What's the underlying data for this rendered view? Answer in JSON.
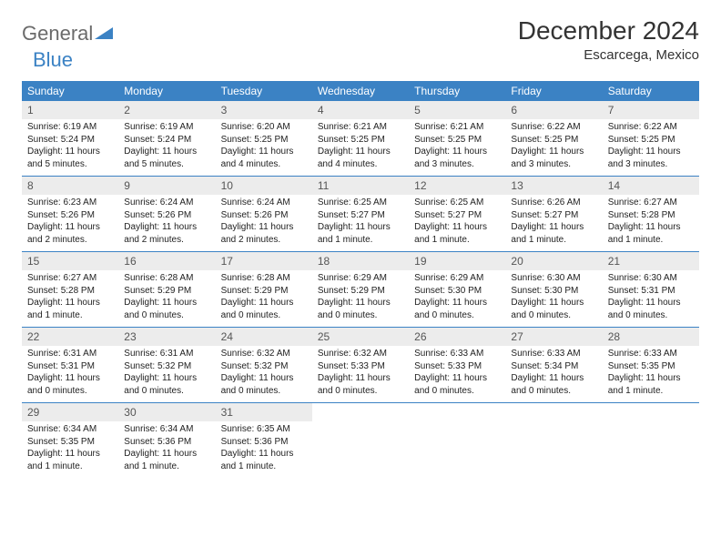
{
  "brand": {
    "name_gray": "General",
    "name_blue": "Blue"
  },
  "title": "December 2024",
  "location": "Escarcega, Mexico",
  "colors": {
    "header_bg": "#3b82c4",
    "header_fg": "#ffffff",
    "daynum_bg": "#ececec",
    "daynum_fg": "#555555",
    "rule": "#3b82c4",
    "logo_gray": "#6b6b6b",
    "logo_blue": "#3b82c4"
  },
  "day_names": [
    "Sunday",
    "Monday",
    "Tuesday",
    "Wednesday",
    "Thursday",
    "Friday",
    "Saturday"
  ],
  "labels": {
    "sunrise": "Sunrise:",
    "sunset": "Sunset:",
    "daylight": "Daylight:"
  },
  "weeks": [
    [
      {
        "n": "1",
        "sr": "6:19 AM",
        "ss": "5:24 PM",
        "dl": "11 hours and 5 minutes."
      },
      {
        "n": "2",
        "sr": "6:19 AM",
        "ss": "5:24 PM",
        "dl": "11 hours and 5 minutes."
      },
      {
        "n": "3",
        "sr": "6:20 AM",
        "ss": "5:25 PM",
        "dl": "11 hours and 4 minutes."
      },
      {
        "n": "4",
        "sr": "6:21 AM",
        "ss": "5:25 PM",
        "dl": "11 hours and 4 minutes."
      },
      {
        "n": "5",
        "sr": "6:21 AM",
        "ss": "5:25 PM",
        "dl": "11 hours and 3 minutes."
      },
      {
        "n": "6",
        "sr": "6:22 AM",
        "ss": "5:25 PM",
        "dl": "11 hours and 3 minutes."
      },
      {
        "n": "7",
        "sr": "6:22 AM",
        "ss": "5:25 PM",
        "dl": "11 hours and 3 minutes."
      }
    ],
    [
      {
        "n": "8",
        "sr": "6:23 AM",
        "ss": "5:26 PM",
        "dl": "11 hours and 2 minutes."
      },
      {
        "n": "9",
        "sr": "6:24 AM",
        "ss": "5:26 PM",
        "dl": "11 hours and 2 minutes."
      },
      {
        "n": "10",
        "sr": "6:24 AM",
        "ss": "5:26 PM",
        "dl": "11 hours and 2 minutes."
      },
      {
        "n": "11",
        "sr": "6:25 AM",
        "ss": "5:27 PM",
        "dl": "11 hours and 1 minute."
      },
      {
        "n": "12",
        "sr": "6:25 AM",
        "ss": "5:27 PM",
        "dl": "11 hours and 1 minute."
      },
      {
        "n": "13",
        "sr": "6:26 AM",
        "ss": "5:27 PM",
        "dl": "11 hours and 1 minute."
      },
      {
        "n": "14",
        "sr": "6:27 AM",
        "ss": "5:28 PM",
        "dl": "11 hours and 1 minute."
      }
    ],
    [
      {
        "n": "15",
        "sr": "6:27 AM",
        "ss": "5:28 PM",
        "dl": "11 hours and 1 minute."
      },
      {
        "n": "16",
        "sr": "6:28 AM",
        "ss": "5:29 PM",
        "dl": "11 hours and 0 minutes."
      },
      {
        "n": "17",
        "sr": "6:28 AM",
        "ss": "5:29 PM",
        "dl": "11 hours and 0 minutes."
      },
      {
        "n": "18",
        "sr": "6:29 AM",
        "ss": "5:29 PM",
        "dl": "11 hours and 0 minutes."
      },
      {
        "n": "19",
        "sr": "6:29 AM",
        "ss": "5:30 PM",
        "dl": "11 hours and 0 minutes."
      },
      {
        "n": "20",
        "sr": "6:30 AM",
        "ss": "5:30 PM",
        "dl": "11 hours and 0 minutes."
      },
      {
        "n": "21",
        "sr": "6:30 AM",
        "ss": "5:31 PM",
        "dl": "11 hours and 0 minutes."
      }
    ],
    [
      {
        "n": "22",
        "sr": "6:31 AM",
        "ss": "5:31 PM",
        "dl": "11 hours and 0 minutes."
      },
      {
        "n": "23",
        "sr": "6:31 AM",
        "ss": "5:32 PM",
        "dl": "11 hours and 0 minutes."
      },
      {
        "n": "24",
        "sr": "6:32 AM",
        "ss": "5:32 PM",
        "dl": "11 hours and 0 minutes."
      },
      {
        "n": "25",
        "sr": "6:32 AM",
        "ss": "5:33 PM",
        "dl": "11 hours and 0 minutes."
      },
      {
        "n": "26",
        "sr": "6:33 AM",
        "ss": "5:33 PM",
        "dl": "11 hours and 0 minutes."
      },
      {
        "n": "27",
        "sr": "6:33 AM",
        "ss": "5:34 PM",
        "dl": "11 hours and 0 minutes."
      },
      {
        "n": "28",
        "sr": "6:33 AM",
        "ss": "5:35 PM",
        "dl": "11 hours and 1 minute."
      }
    ],
    [
      {
        "n": "29",
        "sr": "6:34 AM",
        "ss": "5:35 PM",
        "dl": "11 hours and 1 minute."
      },
      {
        "n": "30",
        "sr": "6:34 AM",
        "ss": "5:36 PM",
        "dl": "11 hours and 1 minute."
      },
      {
        "n": "31",
        "sr": "6:35 AM",
        "ss": "5:36 PM",
        "dl": "11 hours and 1 minute."
      },
      null,
      null,
      null,
      null
    ]
  ]
}
